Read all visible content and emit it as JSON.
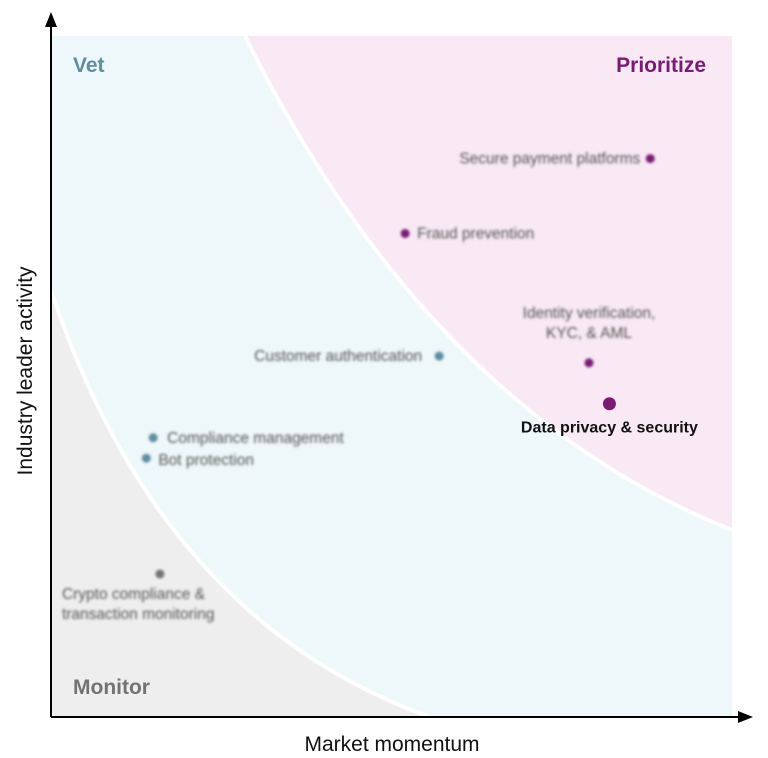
{
  "chart_data": {
    "type": "scatter",
    "xlabel": "Market momentum",
    "ylabel": "Industry leader activity",
    "xlim": [
      0,
      100
    ],
    "ylim": [
      0,
      100
    ],
    "grid": false,
    "legend": "none",
    "zones": [
      {
        "key": "vet",
        "label": "Vet",
        "color": "#5f8ea3",
        "fill": "#eef7f9"
      },
      {
        "key": "prioritize",
        "label": "Prioritize",
        "color": "#7a1a74",
        "fill": "#f8e9f4"
      },
      {
        "key": "monitor",
        "label": "Monitor",
        "color": "#737373",
        "fill": "#eeeeee"
      }
    ],
    "points": [
      {
        "label": "Secure payment platforms",
        "x": 88,
        "y": 82,
        "zone": "prioritize",
        "blurred": true
      },
      {
        "label": "Fraud prevention",
        "x": 52,
        "y": 71,
        "zone": "prioritize",
        "blurred": true
      },
      {
        "label": "Identity verification, KYC, & AML",
        "x": 79,
        "y": 52,
        "zone": "prioritize",
        "blurred": true
      },
      {
        "label": "Data privacy & security",
        "x": 82,
        "y": 46,
        "zone": "prioritize",
        "blurred": false
      },
      {
        "label": "Customer authentication",
        "x": 57,
        "y": 53,
        "zone": "vet",
        "blurred": true
      },
      {
        "label": "Compliance management",
        "x": 15,
        "y": 41,
        "zone": "vet",
        "blurred": true
      },
      {
        "label": "Bot protection",
        "x": 14,
        "y": 38,
        "zone": "vet",
        "blurred": true
      },
      {
        "label": "Crypto compliance & transaction monitoring",
        "x": 16,
        "y": 21,
        "zone": "monitor",
        "blurred": true
      }
    ]
  }
}
